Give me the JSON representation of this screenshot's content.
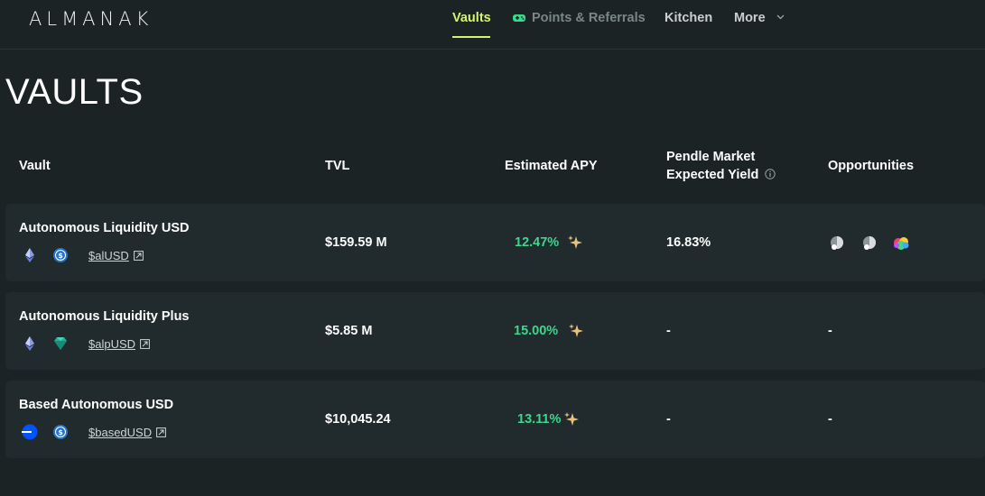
{
  "header": {
    "logo": "ALMANAK",
    "nav": {
      "vaults": "Vaults",
      "points": "Points & Referrals",
      "kitchen": "Kitchen",
      "more": "More"
    }
  },
  "page": {
    "title": "VAULTS"
  },
  "table": {
    "columns": {
      "vault": "Vault",
      "tvl": "TVL",
      "apy": "Estimated APY",
      "pendle_line1": "Pendle Market",
      "pendle_line2": "Expected Yield",
      "opportunities": "Opportunities"
    },
    "rows": [
      {
        "name": "Autonomous Liquidity USD",
        "token": "$alUSD",
        "tvl": "$159.59 M",
        "apy": "12.47%",
        "pendle": "16.83%",
        "opportunities": "",
        "icons": [
          "ethereum-icon",
          "usdc-icon"
        ]
      },
      {
        "name": "Autonomous Liquidity Plus",
        "token": "$alpUSD",
        "tvl": "$5.85 M",
        "apy": "15.00%",
        "pendle": "-",
        "opportunities": "-",
        "icons": [
          "ethereum-icon",
          "gem-icon"
        ]
      },
      {
        "name": "Based Autonomous USD",
        "token": "$basedUSD",
        "tvl": "$10,045.24",
        "apy": "13.11%",
        "pendle": "-",
        "opportunities": "-",
        "icons": [
          "base-icon",
          "usdc-icon"
        ]
      }
    ]
  },
  "colors": {
    "background": "#1b2324",
    "row": "#212b2d",
    "accent": "#d4f56b",
    "apy": "#3dd68c"
  }
}
